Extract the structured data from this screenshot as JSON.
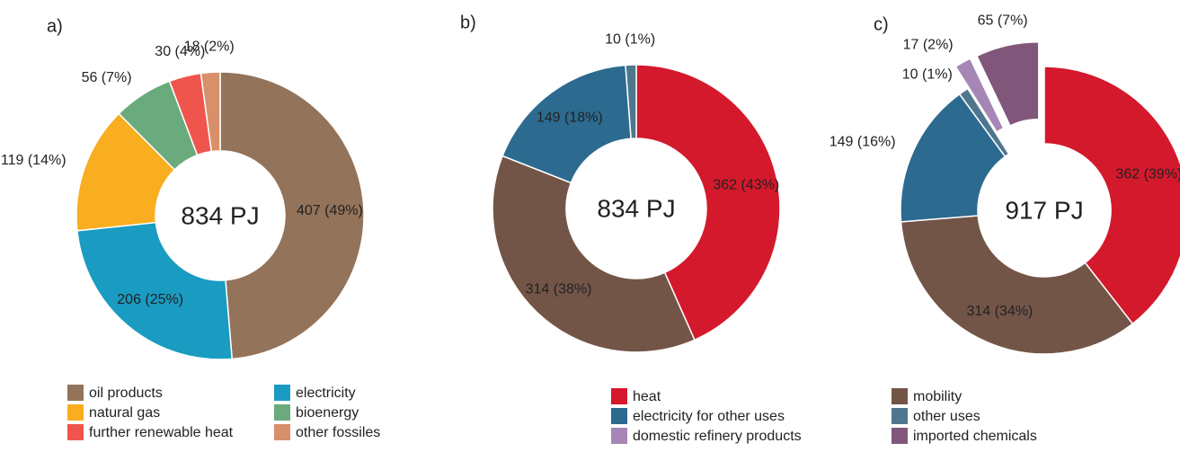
{
  "chart_data": [
    {
      "type": "pie",
      "title": "a)",
      "center_label": "834 PJ",
      "categories": [
        "oil products",
        "electricity",
        "natural gas",
        "bioenergy",
        "further renewable heat",
        "other fossiles"
      ],
      "values": [
        407,
        206,
        119,
        56,
        30,
        18
      ],
      "value_labels": [
        "407 (49%)",
        "206 (25%)",
        "119 (14%)",
        "56 (7%)",
        "30 (4%)",
        "18 (2%)"
      ],
      "colors": [
        "#93735a",
        "#1a9bc1",
        "#f9ae1f",
        "#6aaa7c",
        "#f0554d",
        "#d8906a"
      ]
    },
    {
      "type": "pie",
      "title": "b)",
      "center_label": "834 PJ",
      "values": [
        362,
        314,
        149,
        10
      ],
      "value_labels": [
        "362 (43%)",
        "314 (38%)",
        "149 (18%)",
        "10 (1%)"
      ],
      "colors": [
        "#d4192c",
        "#735548",
        "#2c6a90",
        "#4e778e"
      ]
    },
    {
      "type": "pie",
      "title": "c)",
      "center_label": "917 PJ",
      "categories": [
        "heat",
        "mobility",
        "electricity for other uses",
        "other uses",
        "domestic refinery products",
        "imported chemicals"
      ],
      "values": [
        362,
        314,
        149,
        10,
        17,
        65
      ],
      "value_labels": [
        "362 (39%)",
        "314 (34%)",
        "149 (16%)",
        "10 (1%)",
        "17 (2%)",
        "65 (7%)"
      ],
      "colors": [
        "#d4192c",
        "#735548",
        "#2c6a90",
        "#4e778e",
        "#a586b5",
        "#81567b"
      ],
      "explode": [
        false,
        false,
        false,
        false,
        true,
        true
      ]
    }
  ]
}
